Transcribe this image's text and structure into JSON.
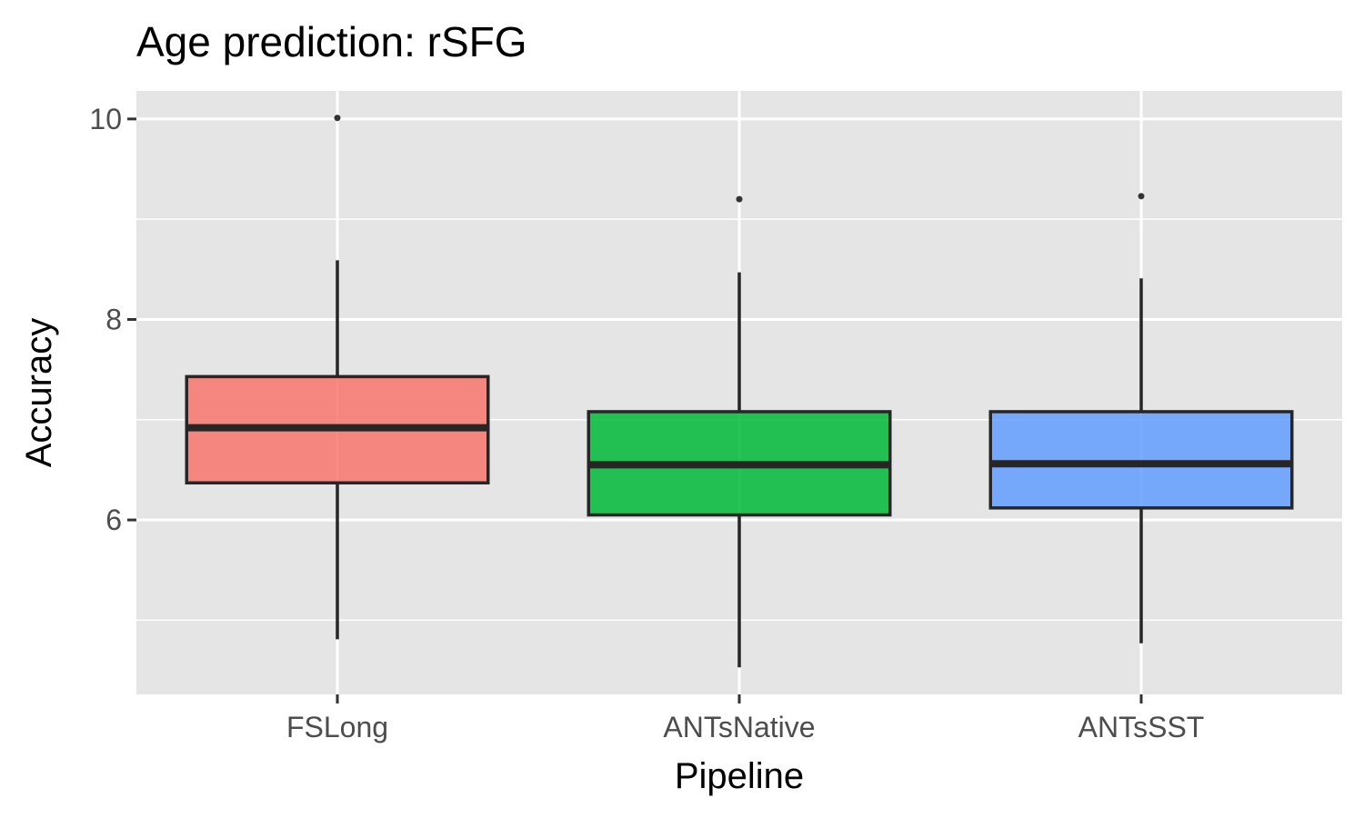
{
  "chart_data": {
    "type": "boxplot",
    "title": "Age prediction: rSFG",
    "xlabel": "Pipeline",
    "ylabel": "Accuracy",
    "ylim": [
      4.26,
      10.28
    ],
    "yticks": [
      6,
      8,
      10
    ],
    "categories": [
      "FSLong",
      "ANTsNative",
      "ANTsSST"
    ],
    "boxes": [
      {
        "name": "FSLong",
        "min": 4.81,
        "q1": 6.37,
        "median": 6.92,
        "q3": 7.43,
        "max": 8.59,
        "outliers": [
          10.01
        ],
        "color": "#f8766d"
      },
      {
        "name": "ANTsNative",
        "min": 4.53,
        "q1": 6.05,
        "median": 6.55,
        "q3": 7.08,
        "max": 8.47,
        "outliers": [
          9.2
        ],
        "color": "#00ba38"
      },
      {
        "name": "ANTsSST",
        "min": 4.77,
        "q1": 6.12,
        "median": 6.56,
        "q3": 7.08,
        "max": 8.41,
        "outliers": [
          9.23
        ],
        "color": "#619cff"
      }
    ],
    "panel_color": "#e5e5e5",
    "grid": true,
    "legend": "none"
  }
}
